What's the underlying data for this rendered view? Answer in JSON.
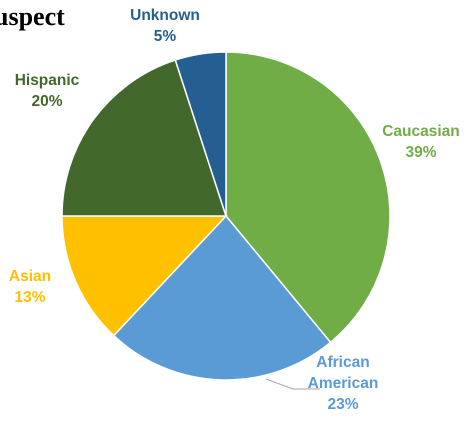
{
  "chart_data": {
    "type": "pie",
    "title": "uspect",
    "start_angle_deg": 0,
    "direction": "clockwise",
    "slices": [
      {
        "label_lines": [
          "Caucasian"
        ],
        "percent_label": "39%",
        "value": 39,
        "color": "#70AD47"
      },
      {
        "label_lines": [
          "African",
          "American"
        ],
        "percent_label": "23%",
        "value": 23,
        "color": "#5B9BD5"
      },
      {
        "label_lines": [
          "Asian"
        ],
        "percent_label": "13%",
        "value": 13,
        "color": "#FFC000"
      },
      {
        "label_lines": [
          "Hispanic"
        ],
        "percent_label": "20%",
        "value": 20,
        "color": "#43682B"
      },
      {
        "label_lines": [
          "Unknown"
        ],
        "percent_label": "5%",
        "value": 5,
        "color": "#255E91"
      }
    ]
  }
}
